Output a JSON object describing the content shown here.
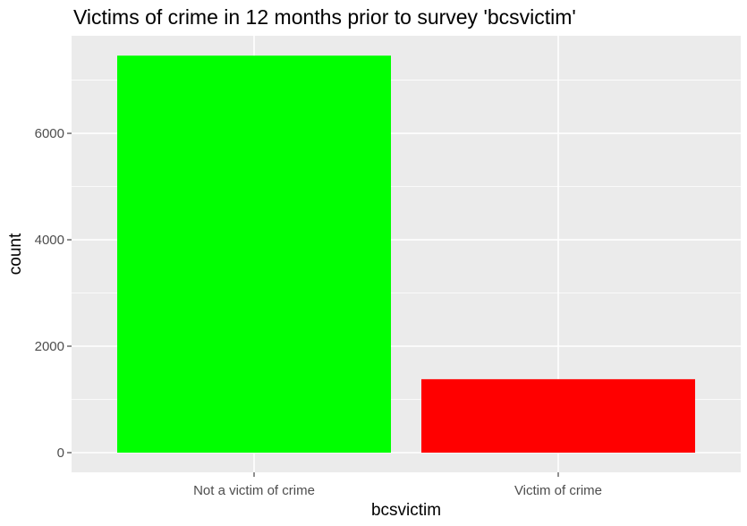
{
  "chart_data": {
    "type": "bar",
    "title": "Victims of crime in 12 months prior to survey 'bcsvictim'",
    "xlabel": "bcsvictim",
    "ylabel": "count",
    "categories": [
      "Not a victim of crime",
      "Victim of crime"
    ],
    "values": [
      7460,
      1380
    ],
    "bar_colors": [
      "#00ff00",
      "#ff0000"
    ],
    "yticks": [
      0,
      2000,
      4000,
      6000
    ],
    "ytick_labels": [
      "0",
      "2000",
      "4000",
      "6000"
    ],
    "ylim": [
      -370,
      7833
    ],
    "grid": true,
    "panel_background": "#ebebeb",
    "grid_color": "#ffffff",
    "legend": "none"
  }
}
